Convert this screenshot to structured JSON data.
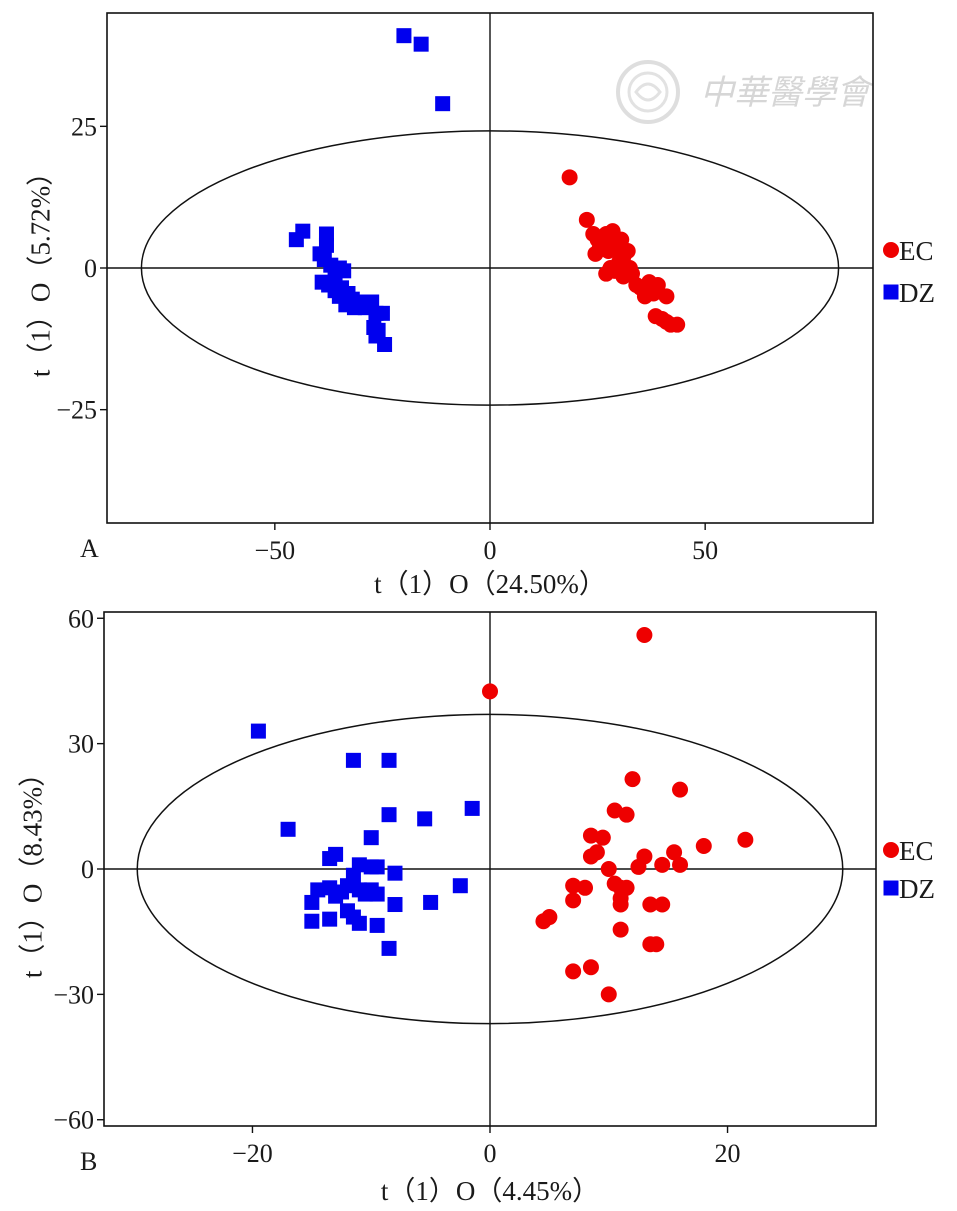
{
  "watermark": {
    "text": "中華醫學會"
  },
  "chart_data": [
    {
      "type": "scatter",
      "panel_label": "A",
      "xlabel": "t（1）O（24.50%）",
      "ylabel": "t（1）O（5.72%）",
      "xlim": [
        -89,
        89
      ],
      "ylim": [
        -45,
        45
      ],
      "x_ticks": [
        -50,
        0,
        50
      ],
      "y_ticks": [
        -25,
        0,
        25
      ],
      "x_tick_labels": [
        "−50",
        "0",
        "50"
      ],
      "y_tick_labels": [
        "−25",
        "0",
        "25"
      ],
      "ellipse": {
        "cx": 0,
        "cy": 0,
        "rx": 81,
        "ry": 24.2
      },
      "grid": false,
      "legend_position": "right",
      "series": [
        {
          "name": "EC",
          "marker": "circle",
          "color": "#ee0000",
          "points": [
            [
              18.5,
              16
            ],
            [
              22.5,
              8.5
            ],
            [
              24,
              6
            ],
            [
              25,
              5
            ],
            [
              25.5,
              3.5
            ],
            [
              24.5,
              2.5
            ],
            [
              26,
              4.5
            ],
            [
              27,
              6
            ],
            [
              27.5,
              3
            ],
            [
              28.5,
              6.5
            ],
            [
              29,
              4.5
            ],
            [
              29.5,
              3
            ],
            [
              30,
              1
            ],
            [
              30.5,
              5
            ],
            [
              31,
              2
            ],
            [
              32,
              3
            ],
            [
              27,
              -1
            ],
            [
              28,
              0
            ],
            [
              29,
              -0.5
            ],
            [
              31,
              -1.5
            ],
            [
              32.5,
              0
            ],
            [
              33,
              -1
            ],
            [
              34,
              -3
            ],
            [
              35,
              -3.5
            ],
            [
              36,
              -5
            ],
            [
              37,
              -2.5
            ],
            [
              38,
              -4.5
            ],
            [
              39,
              -3
            ],
            [
              38.5,
              -8.5
            ],
            [
              40,
              -9
            ],
            [
              41,
              -5
            ],
            [
              41,
              -9.5
            ],
            [
              42,
              -10
            ],
            [
              43.5,
              -10
            ]
          ]
        },
        {
          "name": "DZ",
          "marker": "square",
          "color": "#0000ee",
          "points": [
            [
              -20,
              41
            ],
            [
              -16,
              39.5
            ],
            [
              -11,
              29
            ],
            [
              -45,
              5
            ],
            [
              -43.5,
              6.5
            ],
            [
              -38,
              6
            ],
            [
              -38,
              4
            ],
            [
              -39.5,
              2.5
            ],
            [
              -38.5,
              1.5
            ],
            [
              -37,
              0.5
            ],
            [
              -36,
              -1
            ],
            [
              -35,
              0
            ],
            [
              -34,
              -0.5
            ],
            [
              -39,
              -2.5
            ],
            [
              -37.5,
              -3
            ],
            [
              -36,
              -4
            ],
            [
              -35,
              -5
            ],
            [
              -34.5,
              -3.5
            ],
            [
              -33,
              -4.5
            ],
            [
              -33.5,
              -6.5
            ],
            [
              -32,
              -5.5
            ],
            [
              -31.5,
              -7
            ],
            [
              -30,
              -6
            ],
            [
              -29,
              -7
            ],
            [
              -27.5,
              -6
            ],
            [
              -26.5,
              -8
            ],
            [
              -25,
              -8
            ],
            [
              -27,
              -10.5
            ],
            [
              -26,
              -11
            ],
            [
              -26.5,
              -12
            ],
            [
              -24.5,
              -13.5
            ]
          ]
        }
      ]
    },
    {
      "type": "scatter",
      "panel_label": "B",
      "xlabel": "t（1）O（4.45%）",
      "ylabel": "t（1）O（8.43%）",
      "xlim": [
        -32.5,
        32.5
      ],
      "ylim": [
        -61.5,
        61.5
      ],
      "x_ticks": [
        -20,
        0,
        20
      ],
      "y_ticks": [
        -60,
        -30,
        0,
        30,
        60
      ],
      "x_tick_labels": [
        "−20",
        "0",
        "20"
      ],
      "y_tick_labels": [
        "−60",
        "−30",
        "0",
        "30",
        "60"
      ],
      "ellipse": {
        "cx": 0,
        "cy": 0,
        "rx": 29.7,
        "ry": 37
      },
      "grid": false,
      "legend_position": "right",
      "series": [
        {
          "name": "EC",
          "marker": "circle",
          "color": "#ee0000",
          "points": [
            [
              13,
              56
            ],
            [
              0,
              42.5
            ],
            [
              12,
              21.5
            ],
            [
              16,
              19
            ],
            [
              21.5,
              7
            ],
            [
              18,
              5.5
            ],
            [
              10.5,
              14
            ],
            [
              11.5,
              13
            ],
            [
              8.5,
              8
            ],
            [
              9.5,
              7.5
            ],
            [
              8.5,
              3
            ],
            [
              9,
              4
            ],
            [
              13,
              3
            ],
            [
              15.5,
              4
            ],
            [
              14.5,
              1
            ],
            [
              16,
              1
            ],
            [
              10,
              0
            ],
            [
              12.5,
              0.5
            ],
            [
              10.5,
              -3.5
            ],
            [
              11,
              -4.5
            ],
            [
              11.5,
              -4.5
            ],
            [
              7,
              -4
            ],
            [
              8,
              -4.5
            ],
            [
              11,
              -7
            ],
            [
              11,
              -8.5
            ],
            [
              7,
              -7.5
            ],
            [
              13.5,
              -8.5
            ],
            [
              14.5,
              -8.5
            ],
            [
              5,
              -11.5
            ],
            [
              4.5,
              -12.5
            ],
            [
              11,
              -14.5
            ],
            [
              13.5,
              -18
            ],
            [
              14,
              -18
            ],
            [
              7,
              -24.5
            ],
            [
              8.5,
              -23.5
            ],
            [
              10,
              -30
            ]
          ]
        },
        {
          "name": "DZ",
          "marker": "square",
          "color": "#0000ee",
          "points": [
            [
              -19.5,
              33
            ],
            [
              -11.5,
              26
            ],
            [
              -8.5,
              26
            ],
            [
              -1.5,
              14.5
            ],
            [
              -8.5,
              13
            ],
            [
              -5.5,
              12
            ],
            [
              -17,
              9.5
            ],
            [
              -10,
              7.5
            ],
            [
              -13,
              3.5
            ],
            [
              -13.5,
              2.5
            ],
            [
              -11,
              1
            ],
            [
              -10,
              0.5
            ],
            [
              -9.5,
              0.5
            ],
            [
              -8,
              -1
            ],
            [
              -11.5,
              -1.5
            ],
            [
              -12,
              -4
            ],
            [
              -13.5,
              -4.5
            ],
            [
              -14.5,
              -5
            ],
            [
              -12.5,
              -5.5
            ],
            [
              -11,
              -5
            ],
            [
              -10,
              -5
            ],
            [
              -10.5,
              -6
            ],
            [
              -9.5,
              -6
            ],
            [
              -13,
              -6.5
            ],
            [
              -15,
              -8
            ],
            [
              -8,
              -8.5
            ],
            [
              -5,
              -8
            ],
            [
              -2.5,
              -4
            ],
            [
              -12,
              -10
            ],
            [
              -11.5,
              -11.5
            ],
            [
              -13.5,
              -12
            ],
            [
              -15,
              -12.5
            ],
            [
              -11,
              -13
            ],
            [
              -9.5,
              -13.5
            ],
            [
              -8.5,
              -19
            ]
          ]
        }
      ]
    }
  ]
}
